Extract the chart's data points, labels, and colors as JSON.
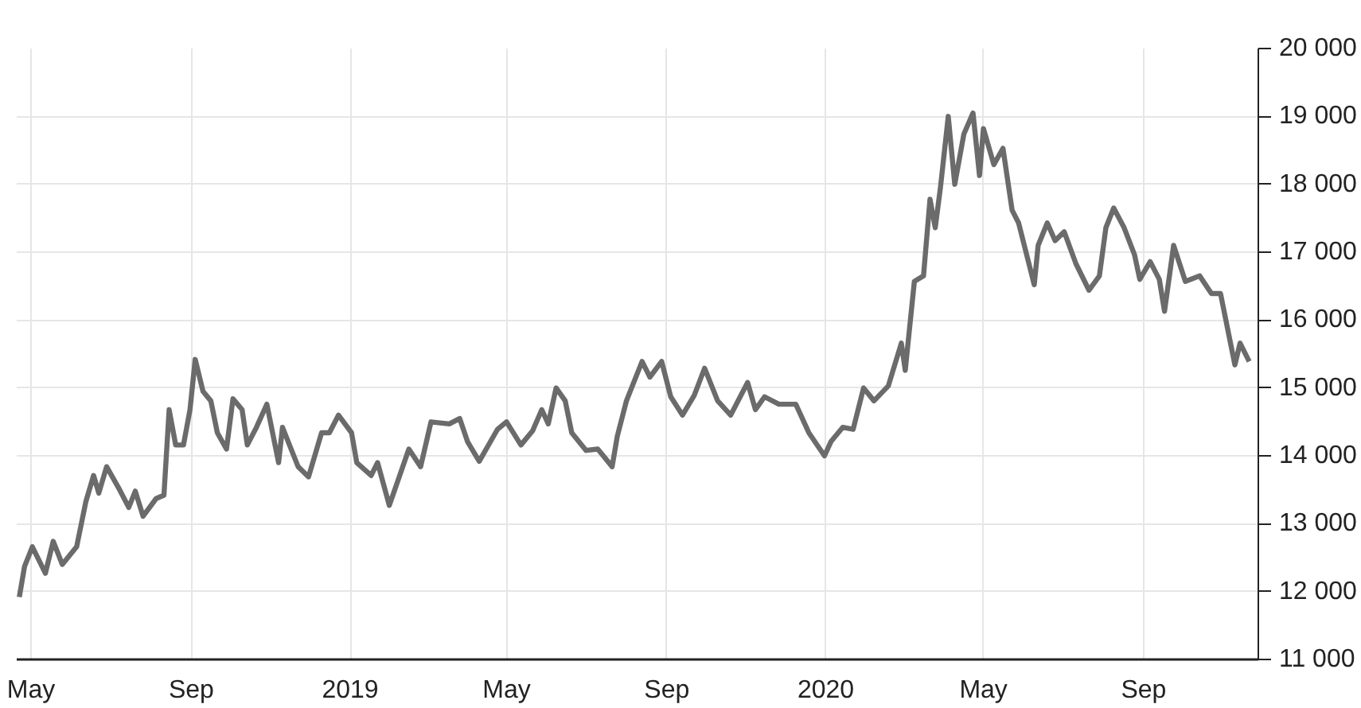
{
  "chart_data": {
    "type": "line",
    "grid": true,
    "line_style": "solid",
    "xlim": [
      "2018-04-20",
      "2020-11-28"
    ],
    "xticks": [
      {
        "value": "2018-05-01",
        "label": "May"
      },
      {
        "value": "2018-09-01",
        "label": "Sep"
      },
      {
        "value": "2019-01-01",
        "label": "2019"
      },
      {
        "value": "2019-05-01",
        "label": "May"
      },
      {
        "value": "2019-09-01",
        "label": "Sep"
      },
      {
        "value": "2020-01-01",
        "label": "2020"
      },
      {
        "value": "2020-05-01",
        "label": "May"
      },
      {
        "value": "2020-09-01",
        "label": "Sep"
      }
    ],
    "ylim": [
      11000,
      20000
    ],
    "yticks": [
      {
        "value": 11000,
        "label": "11 000"
      },
      {
        "value": 12000,
        "label": "12 000"
      },
      {
        "value": 13000,
        "label": "13 000"
      },
      {
        "value": 14000,
        "label": "14 000"
      },
      {
        "value": 15000,
        "label": "15 000"
      },
      {
        "value": 16000,
        "label": "16 000"
      },
      {
        "value": 17000,
        "label": "17 000"
      },
      {
        "value": 18000,
        "label": "18 000"
      },
      {
        "value": 19000,
        "label": "19 000"
      },
      {
        "value": 20000,
        "label": "20 000"
      }
    ],
    "x": [
      "2018-04-22",
      "2018-04-26",
      "2018-05-02",
      "2018-05-12",
      "2018-05-18",
      "2018-05-25",
      "2018-06-05",
      "2018-06-12",
      "2018-06-18",
      "2018-06-22",
      "2018-06-28",
      "2018-07-08",
      "2018-07-15",
      "2018-07-20",
      "2018-07-26",
      "2018-08-05",
      "2018-08-11",
      "2018-08-15",
      "2018-08-20",
      "2018-08-26",
      "2018-08-31",
      "2018-09-04",
      "2018-09-10",
      "2018-09-16",
      "2018-09-21",
      "2018-09-28",
      "2018-10-03",
      "2018-10-10",
      "2018-10-14",
      "2018-10-21",
      "2018-10-29",
      "2018-11-07",
      "2018-11-10",
      "2018-11-17",
      "2018-11-22",
      "2018-11-30",
      "2018-12-10",
      "2018-12-16",
      "2018-12-23",
      "2019-01-02",
      "2019-01-06",
      "2019-01-17",
      "2019-01-22",
      "2019-01-31",
      "2019-02-15",
      "2019-02-24",
      "2019-03-04",
      "2019-03-18",
      "2019-03-26",
      "2019-04-01",
      "2019-04-10",
      "2019-04-24",
      "2019-05-01",
      "2019-05-12",
      "2019-05-21",
      "2019-05-28",
      "2019-06-02",
      "2019-06-08",
      "2019-06-15",
      "2019-06-20",
      "2019-07-01",
      "2019-07-10",
      "2019-07-21",
      "2019-07-25",
      "2019-08-01",
      "2019-08-13",
      "2019-08-19",
      "2019-08-28",
      "2019-09-04",
      "2019-09-13",
      "2019-09-22",
      "2019-09-30",
      "2019-10-10",
      "2019-10-20",
      "2019-11-02",
      "2019-11-08",
      "2019-11-15",
      "2019-11-26",
      "2019-12-09",
      "2019-12-19",
      "2019-12-31",
      "2020-01-05",
      "2020-01-14",
      "2020-01-22",
      "2020-01-30",
      "2020-02-07",
      "2020-02-18",
      "2020-02-28",
      "2020-03-02",
      "2020-03-09",
      "2020-03-16",
      "2020-03-21",
      "2020-03-25",
      "2020-03-29",
      "2020-04-04",
      "2020-04-09",
      "2020-04-16",
      "2020-04-23",
      "2020-04-28",
      "2020-05-01",
      "2020-05-09",
      "2020-05-16",
      "2020-05-23",
      "2020-05-28",
      "2020-06-04",
      "2020-06-09",
      "2020-06-12",
      "2020-06-19",
      "2020-06-25",
      "2020-07-02",
      "2020-07-11",
      "2020-07-21",
      "2020-07-29",
      "2020-08-03",
      "2020-08-09",
      "2020-08-17",
      "2020-08-25",
      "2020-08-29",
      "2020-09-06",
      "2020-09-13",
      "2020-09-17",
      "2020-09-24",
      "2020-10-03",
      "2020-10-14",
      "2020-10-23",
      "2020-10-30",
      "2020-11-10",
      "2020-11-14",
      "2020-11-21"
    ],
    "series": [
      {
        "color": "#6b6b6b",
        "values": [
          11920,
          12370,
          12660,
          12270,
          12740,
          12400,
          12660,
          13320,
          13710,
          13450,
          13840,
          13500,
          13240,
          13480,
          13110,
          13370,
          13420,
          14680,
          14160,
          14160,
          14680,
          15420,
          14950,
          14810,
          14340,
          14100,
          14840,
          14680,
          14160,
          14420,
          14760,
          13900,
          14420,
          14080,
          13840,
          13690,
          14340,
          14340,
          14600,
          14340,
          13900,
          13710,
          13900,
          13270,
          14100,
          13840,
          14500,
          14470,
          14550,
          14210,
          13920,
          14390,
          14500,
          14160,
          14370,
          14680,
          14470,
          15000,
          14810,
          14340,
          14080,
          14100,
          13840,
          14290,
          14810,
          15390,
          15160,
          15390,
          14870,
          14600,
          14890,
          15290,
          14810,
          14600,
          15080,
          14680,
          14870,
          14760,
          14760,
          14340,
          14000,
          14210,
          14420,
          14390,
          15000,
          14810,
          15030,
          15660,
          15260,
          16570,
          16650,
          17780,
          17360,
          17950,
          19000,
          18000,
          18740,
          19050,
          18130,
          18820,
          18290,
          18530,
          17620,
          17430,
          16900,
          16520,
          17100,
          17430,
          17170,
          17300,
          16830,
          16440,
          16650,
          17360,
          17650,
          17360,
          16960,
          16600,
          16860,
          16600,
          16130,
          17100,
          16570,
          16650,
          16390,
          16390,
          15340,
          15660,
          15390
        ]
      }
    ]
  }
}
